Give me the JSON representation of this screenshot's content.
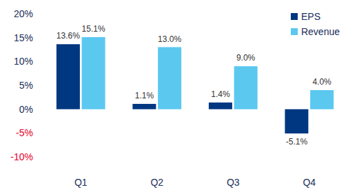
{
  "chart_data": {
    "type": "bar",
    "categories": [
      "Q1",
      "Q2",
      "Q3",
      "Q4"
    ],
    "series": [
      {
        "name": "EPS",
        "color": "#003781",
        "values": [
          13.6,
          1.1,
          1.4,
          -5.1
        ],
        "value_labels": [
          "13.6%",
          "1.1%",
          "1.4%",
          "-5.1%"
        ]
      },
      {
        "name": "Revenue",
        "color": "#5bc8f0",
        "values": [
          15.1,
          13.0,
          9.0,
          4.0
        ],
        "value_labels": [
          "15.1%",
          "13.0%",
          "9.0%",
          "4.0%"
        ]
      }
    ],
    "ylim": [
      -10,
      20
    ],
    "yticks": [
      {
        "value": -10,
        "label": "-10%"
      },
      {
        "value": -5,
        "label": "-5%"
      },
      {
        "value": 0,
        "label": "0%"
      },
      {
        "value": 5,
        "label": "5%"
      },
      {
        "value": 10,
        "label": "10%"
      },
      {
        "value": 15,
        "label": "15%"
      },
      {
        "value": 20,
        "label": "20%"
      }
    ],
    "grid": false,
    "legend": "top-right",
    "data_labels": true
  }
}
